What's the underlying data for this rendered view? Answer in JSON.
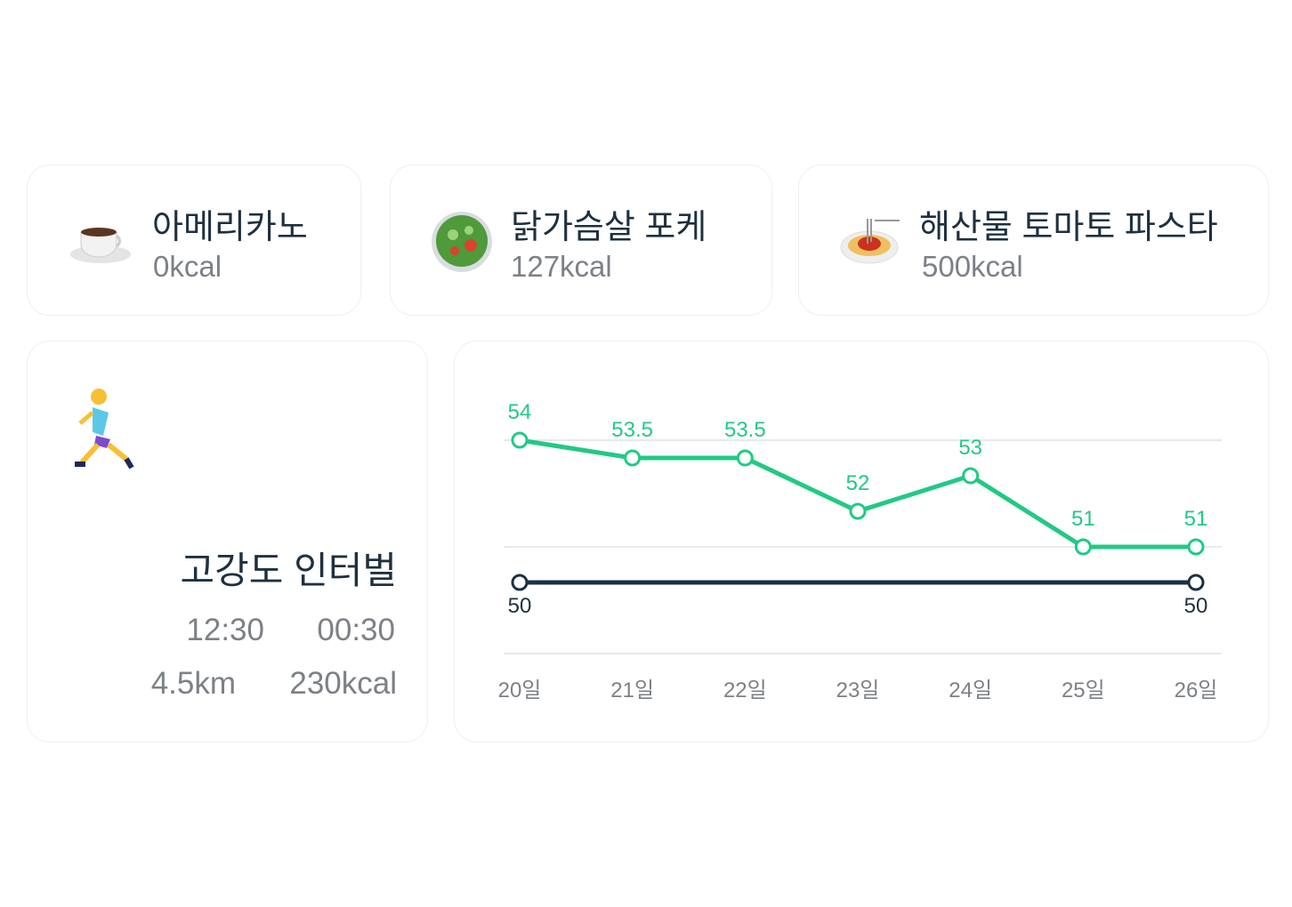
{
  "foods": [
    {
      "name": "아메리카노",
      "kcal": "0kcal"
    },
    {
      "name": "닭가슴살 포케",
      "kcal": "127kcal"
    },
    {
      "name": "해산물 토마토 파스타",
      "kcal": "500kcal"
    }
  ],
  "exercise": {
    "name": "고강도 인터벌",
    "time": "12:30",
    "duration": "00:30",
    "distance": "4.5km",
    "kcal": "230kcal"
  },
  "chart_data": {
    "type": "line",
    "categories": [
      "20일",
      "21일",
      "22일",
      "23일",
      "24일",
      "25일",
      "26일"
    ],
    "series": [
      {
        "name": null,
        "color": "#22c984",
        "values": [
          54,
          53.5,
          53.5,
          52,
          53,
          51,
          51
        ]
      },
      {
        "name": null,
        "color": "#1e3040",
        "values": [
          50,
          50,
          50,
          50,
          50,
          50,
          50
        ]
      }
    ],
    "ylim": [
      48,
      55
    ],
    "yticks": [
      48,
      51,
      54
    ],
    "grid": true
  }
}
